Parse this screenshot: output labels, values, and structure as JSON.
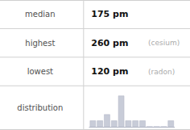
{
  "chart_data": {
    "type": "bar",
    "categories": [
      null,
      null,
      null,
      null,
      null,
      null,
      null,
      null,
      null,
      null,
      null,
      null
    ],
    "values": [
      1,
      1,
      2,
      1,
      5,
      1,
      1,
      1,
      0,
      0,
      0,
      1
    ],
    "color": "#c8ccd8",
    "ylim": [
      0,
      5.75
    ],
    "grid": false,
    "tick_labels": false,
    "annotations": [
      [
        "median",
        "175 pm"
      ],
      [
        "highest",
        "260 pm",
        "(cesium)"
      ],
      [
        "lowest",
        "120 pm",
        "(radon)"
      ],
      [
        "distribution"
      ]
    ]
  }
}
